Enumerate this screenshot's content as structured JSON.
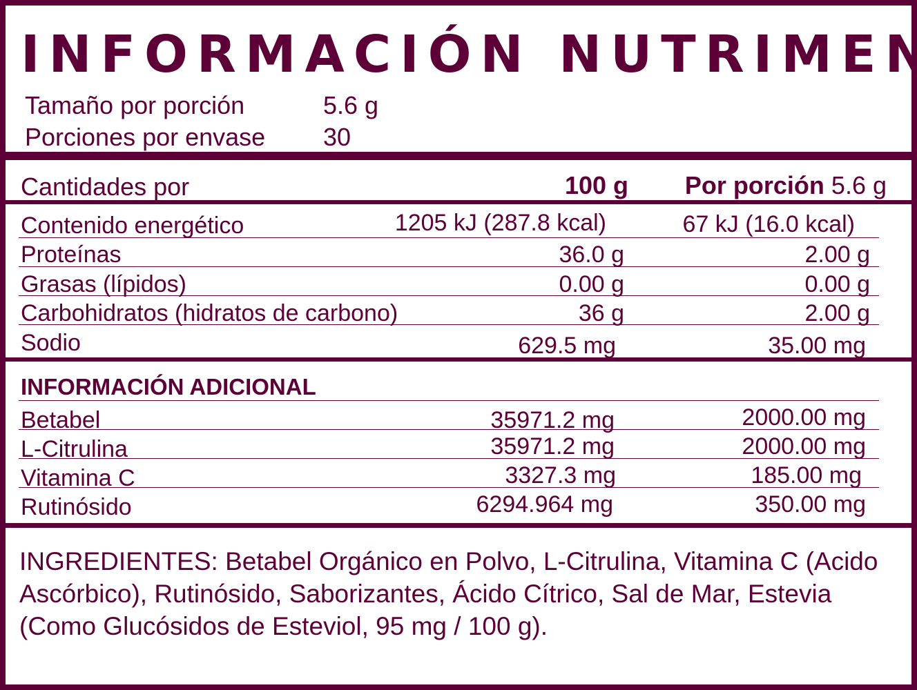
{
  "title": "INFORMACIÓN NUTRIMENTAL",
  "serving": {
    "size_label": "Tamaño por porción",
    "size_value": "5.6 g",
    "count_label": "Porciones por envase",
    "count_value": "30"
  },
  "header": {
    "label": "Cantidades por",
    "col1": "100 g",
    "col2_bold": "Por porción",
    "col2_value": "5.6 g"
  },
  "nutrients": [
    {
      "name": "Contenido energético",
      "per100": "1205 kJ (287.8 kcal)",
      "perServing": "67 kJ (16.0 kcal)"
    },
    {
      "name": "Proteínas",
      "per100": "36.0 g",
      "perServing": "2.00 g"
    },
    {
      "name": "Grasas (lípidos)",
      "per100": "0.00 g",
      "perServing": "0.00 g"
    },
    {
      "name": "Carbohidratos (hidratos de carbono)",
      "per100": "36 g",
      "perServing": "2.00 g"
    },
    {
      "name": "Sodio",
      "per100": "629.5 mg",
      "perServing": "35.00 mg"
    }
  ],
  "additional": {
    "heading": "INFORMACIÓN ADICIONAL",
    "items": [
      {
        "name": "Betabel",
        "per100": "35971.2 mg",
        "perServing": "2000.00 mg"
      },
      {
        "name": "L-Citrulina",
        "per100": "35971.2 mg",
        "perServing": "2000.00 mg"
      },
      {
        "name": "Vitamina C",
        "per100": "3327.3 mg",
        "perServing": "185.00 mg"
      },
      {
        "name": "Rutinósido",
        "per100": "6294.964 mg",
        "perServing": "350.00 mg"
      }
    ]
  },
  "ingredients": "INGREDIENTES: Betabel Orgánico en Polvo, L-Citrulina, Vitamina C (Acido Ascórbico), Rutinósido, Saborizantes, Ácido Cítrico, Sal de Mar, Estevia (Como Glucósidos de Esteviol, 95 mg / 100 g).",
  "colors": {
    "brand": "#5c0037"
  }
}
